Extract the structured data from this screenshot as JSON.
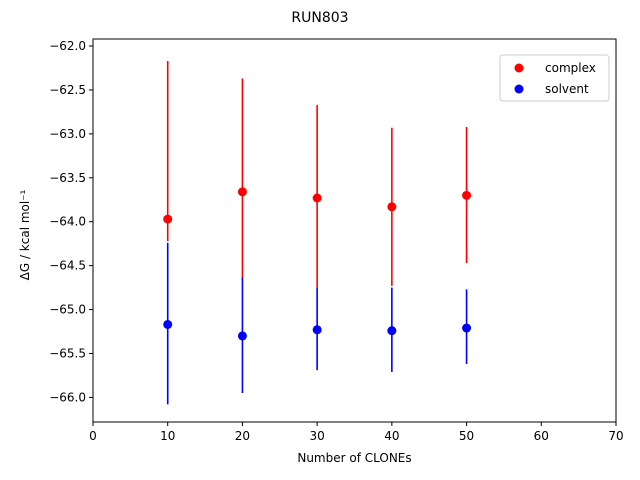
{
  "chart_data": {
    "type": "scatter",
    "title": "RUN803",
    "xlabel": "Number of CLONEs",
    "ylabel": "ΔG / kcal mol⁻¹",
    "xlim": [
      0,
      70
    ],
    "ylim": [
      -66.28,
      -61.92
    ],
    "xticks": [
      0,
      10,
      20,
      30,
      40,
      50,
      60,
      70
    ],
    "yticks": [
      -62.0,
      -62.5,
      -63.0,
      -63.5,
      -64.0,
      -64.5,
      -65.0,
      -65.5,
      -66.0
    ],
    "ytick_labels": [
      "−62.0",
      "−62.5",
      "−63.0",
      "−63.5",
      "−64.0",
      "−64.5",
      "−65.0",
      "−65.5",
      "−66.0"
    ],
    "grid": false,
    "legend_position": "top-right",
    "series": [
      {
        "name": "complex",
        "color": "#ff0000",
        "x": [
          10,
          20,
          30,
          40,
          50
        ],
        "y": [
          -63.97,
          -63.66,
          -63.73,
          -63.83,
          -63.7
        ],
        "err_low": [
          -64.22,
          -64.63,
          -64.75,
          -64.73,
          -64.47
        ],
        "err_high": [
          -62.17,
          -62.37,
          -62.67,
          -62.93,
          -62.92
        ]
      },
      {
        "name": "solvent",
        "color": "#0000ff",
        "x": [
          10,
          20,
          30,
          40,
          50
        ],
        "y": [
          -65.17,
          -65.3,
          -65.23,
          -65.24,
          -65.21
        ],
        "err_low": [
          -66.08,
          -65.95,
          -65.69,
          -65.71,
          -65.62
        ],
        "err_high": [
          -64.24,
          -64.63,
          -64.75,
          -64.75,
          -64.77
        ]
      }
    ]
  }
}
